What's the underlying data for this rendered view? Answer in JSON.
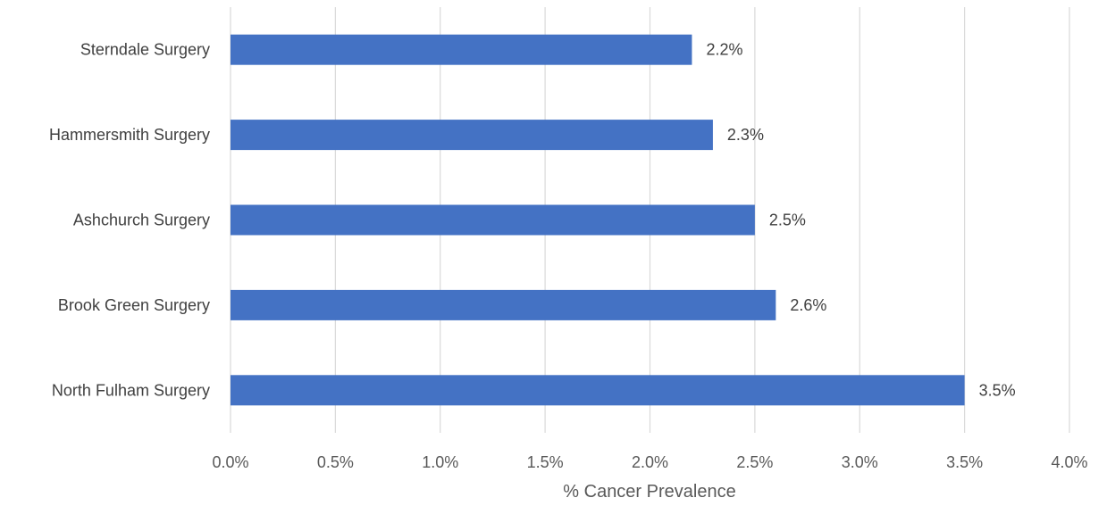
{
  "chart_data": {
    "type": "bar",
    "orientation": "horizontal",
    "categories": [
      "Sterndale Surgery",
      "Hammersmith Surgery",
      "Ashchurch Surgery",
      "Brook Green Surgery",
      "North Fulham Surgery"
    ],
    "values": [
      2.2,
      2.3,
      2.5,
      2.6,
      3.5
    ],
    "data_labels": [
      "2.2%",
      "2.3%",
      "2.5%",
      "2.6%",
      "3.5%"
    ],
    "xlabel": "% Cancer Prevalence",
    "ylabel": "",
    "xlim": [
      0,
      4.0
    ],
    "x_ticks": [
      0,
      0.5,
      1.0,
      1.5,
      2.0,
      2.5,
      3.0,
      3.5,
      4.0
    ],
    "x_tick_labels": [
      "0.0%",
      "0.5%",
      "1.0%",
      "1.5%",
      "2.0%",
      "2.5%",
      "3.0%",
      "3.5%",
      "4.0%"
    ],
    "grid": true,
    "legend": "none",
    "colors": {
      "bar": "#4472c4",
      "grid": "#d9d9d9",
      "text": "#404040"
    }
  }
}
